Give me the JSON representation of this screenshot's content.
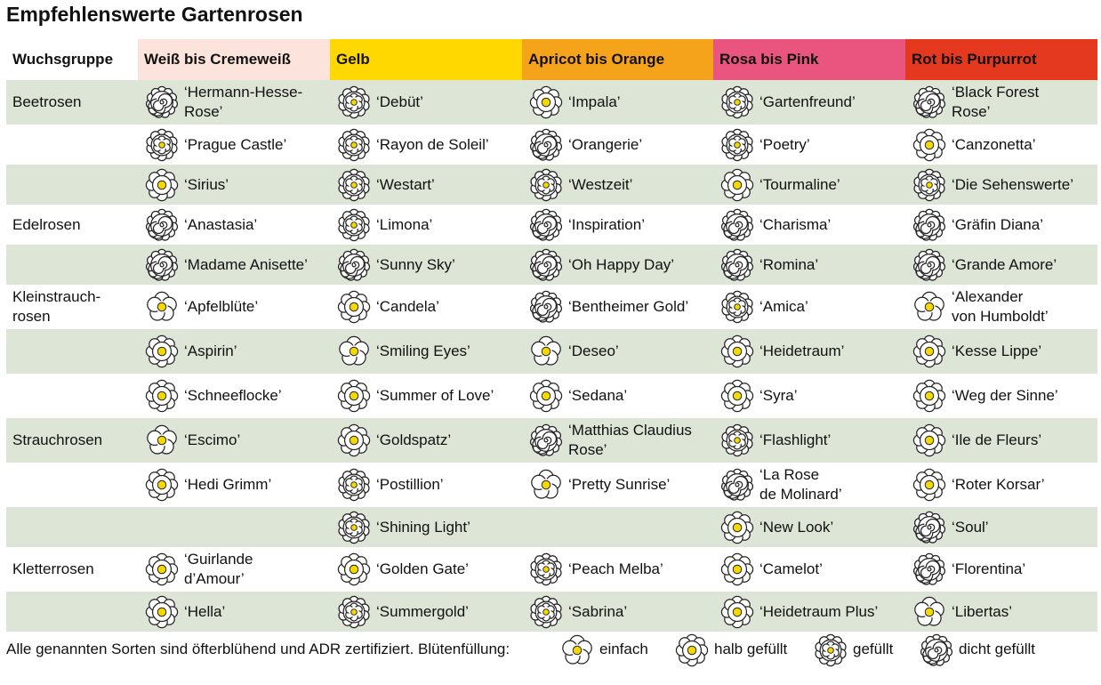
{
  "title": "Empfehlenswerte Gartenrosen",
  "table": {
    "header": [
      "Wuchsgruppe",
      "Weiß bis Cremeweiß",
      "Gelb",
      "Apricot bis Orange",
      "Rosa bis Pink",
      "Rot bis Purpurrot"
    ],
    "groups": [
      {
        "name": "Beetrosen",
        "rows": [
          [
            {
              "name": "‘Hermann-Hesse-\nRose’",
              "fill": 3
            },
            {
              "name": "‘Debüt’",
              "fill": 2
            },
            {
              "name": "‘Impala’",
              "fill": 1
            },
            {
              "name": "‘Gartenfreund’",
              "fill": 2
            },
            {
              "name": "‘Black Forest\nRose’",
              "fill": 3
            }
          ],
          [
            {
              "name": "‘Prague Castle’",
              "fill": 2
            },
            {
              "name": "‘Rayon de Soleil’",
              "fill": 2
            },
            {
              "name": "‘Orangerie’",
              "fill": 3
            },
            {
              "name": "‘Poetry’",
              "fill": 2
            },
            {
              "name": "‘Canzonetta’",
              "fill": 1
            }
          ],
          [
            {
              "name": "‘Sirius’",
              "fill": 1
            },
            {
              "name": "‘Westart’",
              "fill": 2
            },
            {
              "name": "‘Westzeit’",
              "fill": 2
            },
            {
              "name": "‘Tourmaline’",
              "fill": 1
            },
            {
              "name": "‘Die Sehenswerte’",
              "fill": 2
            }
          ]
        ]
      },
      {
        "name": "Edelrosen",
        "rows": [
          [
            {
              "name": "‘Anastasia’",
              "fill": 3
            },
            {
              "name": "‘Limona’",
              "fill": 2
            },
            {
              "name": "‘Inspiration’",
              "fill": 3
            },
            {
              "name": "‘Charisma’",
              "fill": 3
            },
            {
              "name": "‘Gräfin Diana’",
              "fill": 3
            }
          ],
          [
            {
              "name": "‘Madame Anisette’",
              "fill": 3
            },
            {
              "name": "‘Sunny Sky’",
              "fill": 3
            },
            {
              "name": "‘Oh Happy Day’",
              "fill": 3
            },
            {
              "name": "‘Romina’",
              "fill": 3
            },
            {
              "name": "‘Grande Amore’",
              "fill": 3
            }
          ]
        ]
      },
      {
        "name": "Kleinstrauch-\nrosen",
        "rows": [
          [
            {
              "name": "‘Apfelblüte’",
              "fill": 0
            },
            {
              "name": "‘Candela’",
              "fill": 1
            },
            {
              "name": "‘Bentheimer Gold’",
              "fill": 3
            },
            {
              "name": "‘Amica’",
              "fill": 2
            },
            {
              "name": "‘Alexander\nvon Humboldt’",
              "fill": 0
            }
          ],
          [
            {
              "name": "‘Aspirin’",
              "fill": 1
            },
            {
              "name": "‘Smiling Eyes’",
              "fill": 0
            },
            {
              "name": "‘Deseo’",
              "fill": 0
            },
            {
              "name": "‘Heidetraum’",
              "fill": 1
            },
            {
              "name": "‘Kesse Lippe’",
              "fill": 1
            }
          ],
          [
            {
              "name": "‘Schneeflocke’",
              "fill": 1
            },
            {
              "name": "‘Summer of Love’",
              "fill": 1
            },
            {
              "name": "‘Sedana’",
              "fill": 1
            },
            {
              "name": "‘Syra’",
              "fill": 1
            },
            {
              "name": "‘Weg der Sinne’",
              "fill": 1
            }
          ]
        ]
      },
      {
        "name": "Strauchrosen",
        "rows": [
          [
            {
              "name": "‘Escimo’",
              "fill": 0
            },
            {
              "name": "‘Goldspatz’",
              "fill": 1
            },
            {
              "name": "‘Matthias Claudius\nRose’",
              "fill": 3
            },
            {
              "name": "‘Flashlight’",
              "fill": 2
            },
            {
              "name": "‘Ile de Fleurs’",
              "fill": 1
            }
          ],
          [
            {
              "name": "‘Hedi Grimm’",
              "fill": 1
            },
            {
              "name": "‘Postillion’",
              "fill": 2
            },
            {
              "name": "‘Pretty Sunrise’",
              "fill": 0
            },
            {
              "name": "‘La Rose\nde Molinard’",
              "fill": 3
            },
            {
              "name": "‘Roter Korsar’",
              "fill": 1
            }
          ],
          [
            null,
            {
              "name": "‘Shining Light’",
              "fill": 2
            },
            null,
            {
              "name": "‘New Look’",
              "fill": 1
            },
            {
              "name": "‘Soul’",
              "fill": 3
            }
          ]
        ]
      },
      {
        "name": "Kletterrosen",
        "rows": [
          [
            {
              "name": "‘Guirlande\nd’Amour’",
              "fill": 1
            },
            {
              "name": "‘Golden Gate’",
              "fill": 1
            },
            {
              "name": "‘Peach Melba’",
              "fill": 2
            },
            {
              "name": "‘Camelot’",
              "fill": 1
            },
            {
              "name": "‘Florentina’",
              "fill": 3
            }
          ],
          [
            {
              "name": "‘Hella’",
              "fill": 1
            },
            {
              "name": "‘Summergold’",
              "fill": 2
            },
            {
              "name": "‘Sabrina’",
              "fill": 2
            },
            {
              "name": "‘Heidetraum Plus’",
              "fill": 1
            },
            {
              "name": "‘Libertas’",
              "fill": 0
            }
          ]
        ]
      }
    ]
  },
  "footer": {
    "note": "Alle genannten Sorten sind öfterblühend und ADR zertifiziert. Blütenfüllung:",
    "legend": [
      "einfach",
      "halb gefüllt",
      "gefüllt",
      "dicht gefüllt"
    ]
  }
}
